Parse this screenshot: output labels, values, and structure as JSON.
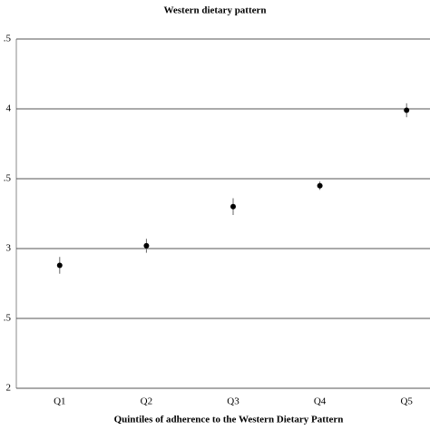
{
  "chart_data": {
    "type": "scatter",
    "title": "Western dietary pattern",
    "xlabel": "Quintiles of adherence to the Western Dietary Pattern",
    "categories": [
      "Q1",
      "Q2",
      "Q3",
      "Q4",
      "Q5"
    ],
    "values": [
      2.88,
      3.02,
      3.3,
      3.45,
      3.99
    ],
    "errors": [
      0.06,
      0.05,
      0.06,
      0.03,
      0.05
    ],
    "color": "#000000",
    "ylim": [
      2,
      4.5
    ],
    "yticks": [
      2,
      {
        "value": 2.5,
        "label": ".5"
      },
      3,
      {
        "value": 3.5,
        "label": ".5"
      },
      4,
      {
        "value": 4.5,
        "label": ".5"
      }
    ],
    "grid": true
  }
}
